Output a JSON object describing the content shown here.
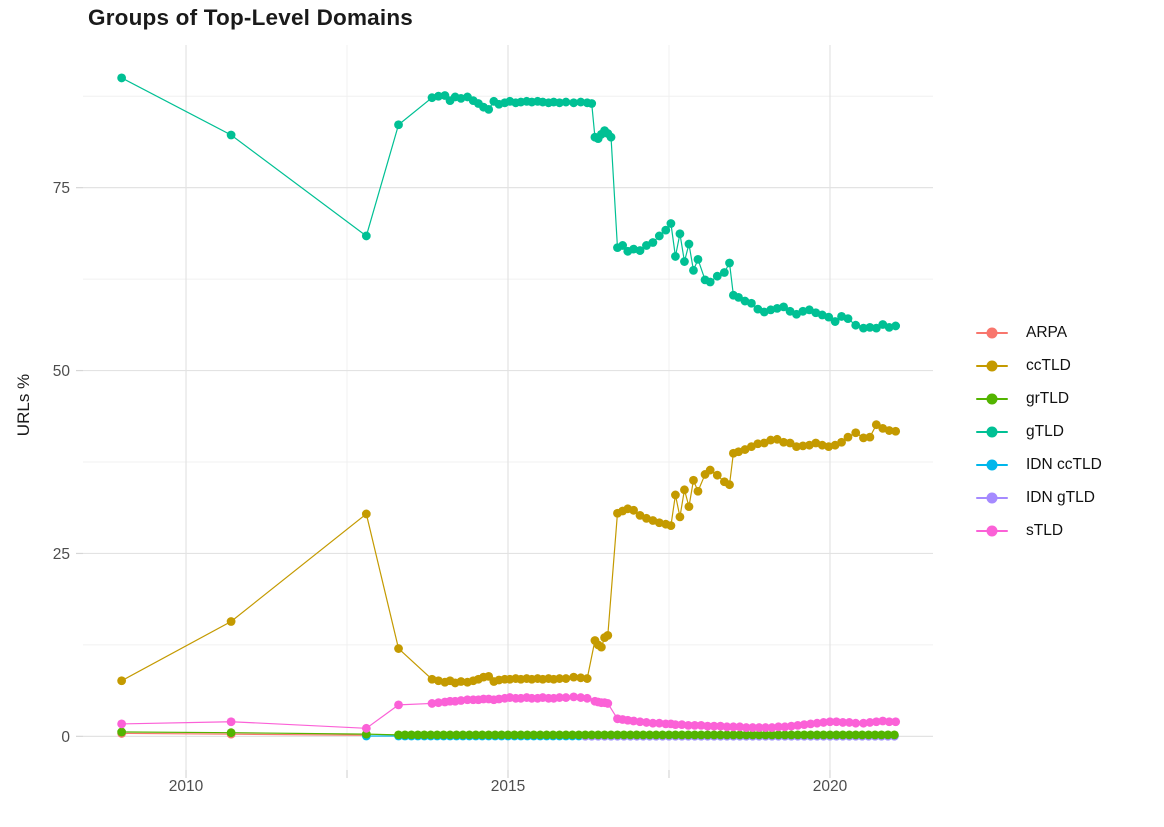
{
  "title": "Groups of Top-Level Domains",
  "axes": {
    "y_label": "URLs %",
    "x_tick_labels": [
      "2010",
      "2015",
      "2020"
    ],
    "y_tick_labels": [
      "0",
      "25",
      "50",
      "75"
    ]
  },
  "palette": {
    "ARPA": "#F8766D",
    "ccTLD": "#C49A00",
    "grTLD": "#53B400",
    "gTLD": "#00C094",
    "IDN ccTLD": "#00B6EB",
    "IDN gTLD": "#A58AFF",
    "sTLD": "#FB61D7"
  },
  "grid_colors": {
    "major": "#E3E3E3",
    "minor": "#F0F0F0",
    "tick": "#D6D6D6"
  },
  "text_colors": {
    "ticks": "#4d4d4d",
    "title": "#1a1a1a"
  },
  "chart_data": {
    "type": "line",
    "title": "Groups of Top-Level Domains",
    "xlabel": "",
    "ylabel": "URLs %",
    "xlim": [
      2008.4,
      2021.6
    ],
    "ylim": [
      -4.6,
      94.5
    ],
    "x_ticks": [
      2010,
      2015,
      2020
    ],
    "x_minor_ticks": [
      2012.5,
      2017.5
    ],
    "y_ticks": [
      0,
      25,
      50,
      75
    ],
    "y_minor_ticks": [
      12.5,
      37.5,
      62.5,
      87.5
    ],
    "grid": "major+minor",
    "legend_position": "right-center",
    "series": [
      {
        "name": "ARPA",
        "color": "#F8766D",
        "points": [
          [
            2009.0,
            0.4
          ],
          [
            2010.7,
            0.3
          ],
          [
            2012.8,
            0.15
          ]
        ]
      },
      {
        "name": "ccTLD",
        "color": "#C49A00",
        "points": [
          [
            2009.0,
            7.6
          ],
          [
            2010.7,
            15.7
          ],
          [
            2012.8,
            30.4
          ],
          [
            2013.3,
            12.0
          ],
          [
            2013.82,
            7.8
          ],
          [
            2013.92,
            7.6
          ],
          [
            2014.02,
            7.4
          ],
          [
            2014.1,
            7.6
          ],
          [
            2014.18,
            7.3
          ],
          [
            2014.27,
            7.5
          ],
          [
            2014.37,
            7.4
          ],
          [
            2014.46,
            7.6
          ],
          [
            2014.54,
            7.8
          ],
          [
            2014.62,
            8.1
          ],
          [
            2014.7,
            8.2
          ],
          [
            2014.78,
            7.5
          ],
          [
            2014.86,
            7.7
          ],
          [
            2014.95,
            7.8
          ],
          [
            2015.03,
            7.8
          ],
          [
            2015.12,
            7.9
          ],
          [
            2015.2,
            7.8
          ],
          [
            2015.29,
            7.9
          ],
          [
            2015.37,
            7.8
          ],
          [
            2015.46,
            7.9
          ],
          [
            2015.54,
            7.8
          ],
          [
            2015.63,
            7.9
          ],
          [
            2015.71,
            7.8
          ],
          [
            2015.8,
            7.9
          ],
          [
            2015.9,
            7.9
          ],
          [
            2016.02,
            8.1
          ],
          [
            2016.13,
            8.0
          ],
          [
            2016.23,
            7.9
          ],
          [
            2016.35,
            13.1
          ],
          [
            2016.4,
            12.5
          ],
          [
            2016.45,
            12.2
          ],
          [
            2016.5,
            13.5
          ],
          [
            2016.55,
            13.8
          ],
          [
            2016.7,
            30.5
          ],
          [
            2016.78,
            30.8
          ],
          [
            2016.86,
            31.1
          ],
          [
            2016.95,
            30.9
          ],
          [
            2017.05,
            30.2
          ],
          [
            2017.15,
            29.8
          ],
          [
            2017.25,
            29.5
          ],
          [
            2017.35,
            29.2
          ],
          [
            2017.45,
            29.0
          ],
          [
            2017.53,
            28.8
          ],
          [
            2017.6,
            33.0
          ],
          [
            2017.67,
            30.0
          ],
          [
            2017.74,
            33.7
          ],
          [
            2017.81,
            31.4
          ],
          [
            2017.88,
            35.0
          ],
          [
            2017.95,
            33.5
          ],
          [
            2018.06,
            35.8
          ],
          [
            2018.14,
            36.4
          ],
          [
            2018.25,
            35.7
          ],
          [
            2018.36,
            34.8
          ],
          [
            2018.44,
            34.4
          ],
          [
            2018.5,
            38.7
          ],
          [
            2018.58,
            38.9
          ],
          [
            2018.68,
            39.2
          ],
          [
            2018.78,
            39.6
          ],
          [
            2018.88,
            40.0
          ],
          [
            2018.98,
            40.1
          ],
          [
            2019.08,
            40.5
          ],
          [
            2019.18,
            40.6
          ],
          [
            2019.28,
            40.2
          ],
          [
            2019.38,
            40.1
          ],
          [
            2019.48,
            39.6
          ],
          [
            2019.58,
            39.7
          ],
          [
            2019.68,
            39.8
          ],
          [
            2019.78,
            40.1
          ],
          [
            2019.88,
            39.8
          ],
          [
            2019.98,
            39.6
          ],
          [
            2020.08,
            39.8
          ],
          [
            2020.18,
            40.2
          ],
          [
            2020.28,
            40.9
          ],
          [
            2020.4,
            41.5
          ],
          [
            2020.52,
            40.8
          ],
          [
            2020.62,
            40.9
          ],
          [
            2020.72,
            42.6
          ],
          [
            2020.82,
            42.1
          ],
          [
            2020.92,
            41.8
          ],
          [
            2021.02,
            41.7
          ]
        ]
      },
      {
        "name": "grTLD",
        "color": "#53B400",
        "points": [
          [
            2009.0,
            0.6
          ],
          [
            2010.7,
            0.5
          ],
          [
            2012.8,
            0.3
          ]
        ],
        "flat": {
          "from": 2013.3,
          "to": 2021.02,
          "step": 0.1,
          "value": 0.2
        }
      },
      {
        "name": "gTLD",
        "color": "#00C094",
        "points": [
          [
            2009.0,
            90.0
          ],
          [
            2010.7,
            82.2
          ],
          [
            2012.8,
            68.4
          ],
          [
            2013.3,
            83.6
          ],
          [
            2013.82,
            87.3
          ],
          [
            2013.92,
            87.5
          ],
          [
            2014.02,
            87.6
          ],
          [
            2014.1,
            86.9
          ],
          [
            2014.18,
            87.4
          ],
          [
            2014.27,
            87.2
          ],
          [
            2014.37,
            87.4
          ],
          [
            2014.46,
            86.9
          ],
          [
            2014.54,
            86.5
          ],
          [
            2014.62,
            86.0
          ],
          [
            2014.7,
            85.7
          ],
          [
            2014.78,
            86.8
          ],
          [
            2014.86,
            86.4
          ],
          [
            2014.95,
            86.6
          ],
          [
            2015.03,
            86.8
          ],
          [
            2015.12,
            86.6
          ],
          [
            2015.2,
            86.7
          ],
          [
            2015.29,
            86.8
          ],
          [
            2015.37,
            86.7
          ],
          [
            2015.46,
            86.8
          ],
          [
            2015.54,
            86.7
          ],
          [
            2015.63,
            86.6
          ],
          [
            2015.71,
            86.7
          ],
          [
            2015.8,
            86.6
          ],
          [
            2015.9,
            86.7
          ],
          [
            2016.02,
            86.6
          ],
          [
            2016.13,
            86.7
          ],
          [
            2016.23,
            86.6
          ],
          [
            2016.3,
            86.5
          ],
          [
            2016.35,
            81.9
          ],
          [
            2016.4,
            81.7
          ],
          [
            2016.45,
            82.3
          ],
          [
            2016.5,
            82.8
          ],
          [
            2016.55,
            82.4
          ],
          [
            2016.6,
            81.9
          ],
          [
            2016.7,
            66.8
          ],
          [
            2016.78,
            67.1
          ],
          [
            2016.86,
            66.3
          ],
          [
            2016.95,
            66.6
          ],
          [
            2017.05,
            66.4
          ],
          [
            2017.15,
            67.1
          ],
          [
            2017.25,
            67.5
          ],
          [
            2017.35,
            68.4
          ],
          [
            2017.45,
            69.2
          ],
          [
            2017.53,
            70.1
          ],
          [
            2017.6,
            65.6
          ],
          [
            2017.67,
            68.7
          ],
          [
            2017.74,
            64.9
          ],
          [
            2017.81,
            67.3
          ],
          [
            2017.88,
            63.7
          ],
          [
            2017.95,
            65.2
          ],
          [
            2018.06,
            62.4
          ],
          [
            2018.14,
            62.1
          ],
          [
            2018.25,
            62.9
          ],
          [
            2018.36,
            63.4
          ],
          [
            2018.44,
            64.7
          ],
          [
            2018.5,
            60.3
          ],
          [
            2018.58,
            60.0
          ],
          [
            2018.68,
            59.5
          ],
          [
            2018.78,
            59.2
          ],
          [
            2018.88,
            58.4
          ],
          [
            2018.98,
            58.0
          ],
          [
            2019.08,
            58.3
          ],
          [
            2019.18,
            58.5
          ],
          [
            2019.28,
            58.7
          ],
          [
            2019.38,
            58.1
          ],
          [
            2019.48,
            57.7
          ],
          [
            2019.58,
            58.1
          ],
          [
            2019.68,
            58.3
          ],
          [
            2019.78,
            57.9
          ],
          [
            2019.88,
            57.6
          ],
          [
            2019.98,
            57.3
          ],
          [
            2020.08,
            56.7
          ],
          [
            2020.18,
            57.4
          ],
          [
            2020.28,
            57.1
          ],
          [
            2020.4,
            56.2
          ],
          [
            2020.52,
            55.8
          ],
          [
            2020.62,
            55.9
          ],
          [
            2020.72,
            55.8
          ],
          [
            2020.82,
            56.3
          ],
          [
            2020.92,
            55.9
          ],
          [
            2021.02,
            56.1
          ]
        ]
      },
      {
        "name": "IDN ccTLD",
        "color": "#00B6EB",
        "points": [
          [
            2012.8,
            0.05
          ]
        ],
        "flat": {
          "from": 2013.3,
          "to": 2021.02,
          "step": 0.1,
          "value": 0.05
        }
      },
      {
        "name": "IDN gTLD",
        "color": "#A58AFF",
        "points": [],
        "flat": {
          "from": 2016.2,
          "to": 2021.02,
          "step": 0.1,
          "value": 0.02
        }
      },
      {
        "name": "sTLD",
        "color": "#FB61D7",
        "points": [
          [
            2009.0,
            1.7
          ],
          [
            2010.7,
            2.0
          ],
          [
            2012.8,
            1.1
          ],
          [
            2013.3,
            4.3
          ],
          [
            2013.82,
            4.5
          ],
          [
            2013.92,
            4.6
          ],
          [
            2014.02,
            4.7
          ],
          [
            2014.1,
            4.8
          ],
          [
            2014.18,
            4.8
          ],
          [
            2014.27,
            4.9
          ],
          [
            2014.37,
            5.0
          ],
          [
            2014.46,
            5.0
          ],
          [
            2014.54,
            5.0
          ],
          [
            2014.62,
            5.1
          ],
          [
            2014.7,
            5.1
          ],
          [
            2014.78,
            5.0
          ],
          [
            2014.86,
            5.1
          ],
          [
            2014.95,
            5.2
          ],
          [
            2015.03,
            5.3
          ],
          [
            2015.12,
            5.2
          ],
          [
            2015.2,
            5.2
          ],
          [
            2015.29,
            5.3
          ],
          [
            2015.37,
            5.2
          ],
          [
            2015.46,
            5.2
          ],
          [
            2015.54,
            5.3
          ],
          [
            2015.63,
            5.2
          ],
          [
            2015.71,
            5.2
          ],
          [
            2015.8,
            5.3
          ],
          [
            2015.9,
            5.3
          ],
          [
            2016.02,
            5.4
          ],
          [
            2016.13,
            5.3
          ],
          [
            2016.23,
            5.2
          ],
          [
            2016.35,
            4.8
          ],
          [
            2016.4,
            4.7
          ],
          [
            2016.45,
            4.6
          ],
          [
            2016.5,
            4.6
          ],
          [
            2016.55,
            4.5
          ],
          [
            2016.7,
            2.4
          ],
          [
            2016.78,
            2.3
          ],
          [
            2016.86,
            2.2
          ],
          [
            2016.95,
            2.1
          ],
          [
            2017.05,
            2.0
          ],
          [
            2017.15,
            1.9
          ],
          [
            2017.25,
            1.8
          ],
          [
            2017.35,
            1.8
          ],
          [
            2017.45,
            1.7
          ],
          [
            2017.53,
            1.7
          ],
          [
            2017.6,
            1.6
          ],
          [
            2017.7,
            1.6
          ],
          [
            2017.8,
            1.5
          ],
          [
            2017.9,
            1.5
          ],
          [
            2018.0,
            1.5
          ],
          [
            2018.1,
            1.4
          ],
          [
            2018.2,
            1.4
          ],
          [
            2018.3,
            1.4
          ],
          [
            2018.4,
            1.3
          ],
          [
            2018.5,
            1.3
          ],
          [
            2018.6,
            1.3
          ],
          [
            2018.7,
            1.2
          ],
          [
            2018.8,
            1.2
          ],
          [
            2018.9,
            1.2
          ],
          [
            2019.0,
            1.2
          ],
          [
            2019.1,
            1.2
          ],
          [
            2019.2,
            1.3
          ],
          [
            2019.3,
            1.3
          ],
          [
            2019.4,
            1.4
          ],
          [
            2019.5,
            1.5
          ],
          [
            2019.6,
            1.6
          ],
          [
            2019.7,
            1.7
          ],
          [
            2019.8,
            1.8
          ],
          [
            2019.9,
            1.9
          ],
          [
            2020.0,
            2.0
          ],
          [
            2020.1,
            2.0
          ],
          [
            2020.2,
            1.9
          ],
          [
            2020.3,
            1.9
          ],
          [
            2020.4,
            1.8
          ],
          [
            2020.52,
            1.8
          ],
          [
            2020.62,
            1.9
          ],
          [
            2020.72,
            2.0
          ],
          [
            2020.82,
            2.1
          ],
          [
            2020.92,
            2.0
          ],
          [
            2021.02,
            2.0
          ]
        ]
      }
    ]
  }
}
